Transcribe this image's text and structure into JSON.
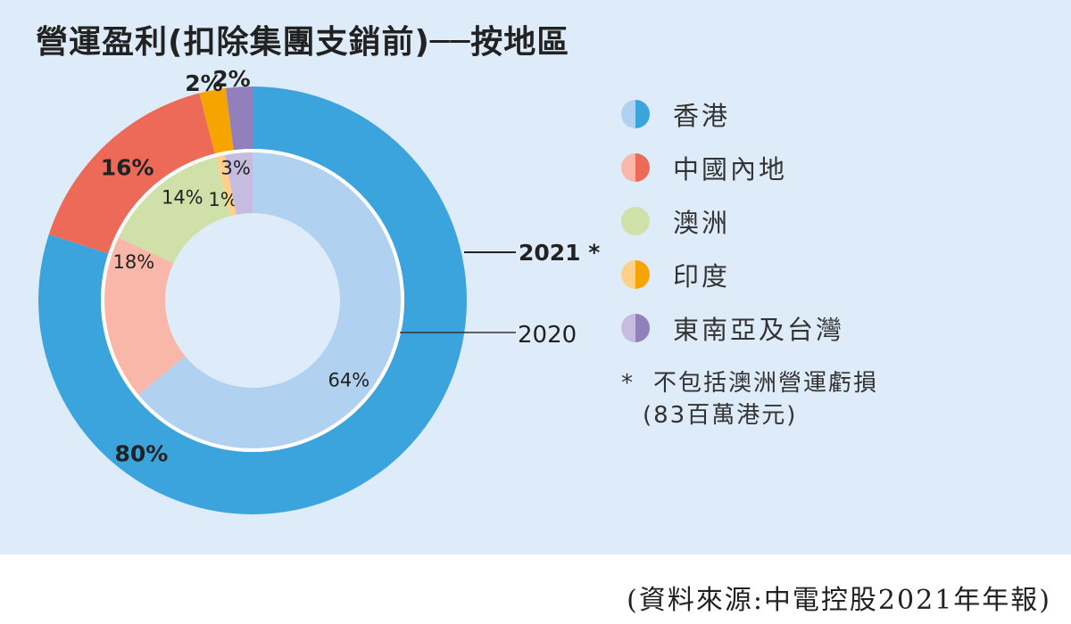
{
  "chart_data": {
    "type": "pie",
    "title": "營運盈利(扣除集團支銷前)──按地區",
    "categories": [
      "香港",
      "中國內地",
      "澳洲",
      "印度",
      "東南亞及台灣"
    ],
    "series": [
      {
        "name": "2021 *",
        "values": [
          80,
          16,
          0,
          2,
          2
        ],
        "labels": [
          "80%",
          "16%",
          "",
          "2%",
          "2%"
        ],
        "colors": [
          "#3ba4dc",
          "#ee6a58",
          "#cfe1a8",
          "#f5a400",
          "#9280bd"
        ]
      },
      {
        "name": "2020",
        "values": [
          64,
          18,
          14,
          1,
          3
        ],
        "labels": [
          "64%",
          "18%",
          "14%",
          "1%",
          "3%"
        ],
        "colors": [
          "#b0d2f0",
          "#f8b7a8",
          "#cfe1a8",
          "#ffd08a",
          "#c6bce0"
        ]
      }
    ],
    "legend_placement": "right"
  },
  "legend": [
    {
      "label": "香港",
      "light": "#b0d2f0",
      "dark": "#3ba4dc"
    },
    {
      "label": "中國內地",
      "light": "#f8b7a8",
      "dark": "#ee6a58"
    },
    {
      "label": "澳洲",
      "light": "#cfe1a8",
      "dark": "#cfe1a8"
    },
    {
      "label": "印度",
      "light": "#ffd08a",
      "dark": "#f5a400"
    },
    {
      "label": "東南亞及台灣",
      "light": "#c6bce0",
      "dark": "#9280bd"
    }
  ],
  "note": {
    "star": "*",
    "line1": "不包括澳洲營運虧損",
    "line2": "(83百萬港元)"
  },
  "source": "(資料來源:中電控股2021年年報)"
}
